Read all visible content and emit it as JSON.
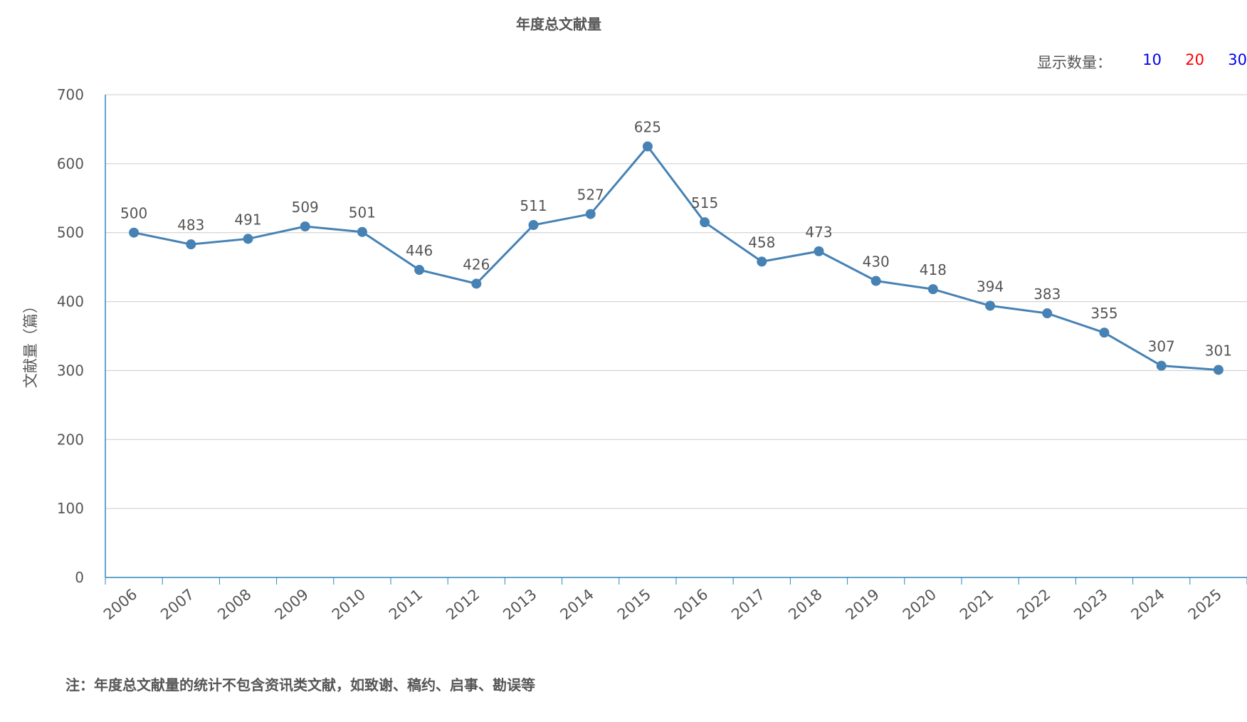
{
  "header": {
    "title": "年度总文献量"
  },
  "count_switch": {
    "label": "显示数量：",
    "options": [
      {
        "label": "10",
        "color": "#0000ee"
      },
      {
        "label": "20",
        "color": "#ff0000"
      },
      {
        "label": "30",
        "color": "#0000ee"
      }
    ]
  },
  "footnote": "注：年度总文献量的统计不包含资讯类文献，如致谢、稿约、启事、勘误等",
  "colors": {
    "line": "#4682b4",
    "axis": "#2e86c1",
    "grid": "#cccccc",
    "text": "#555555"
  },
  "chart_data": {
    "type": "line",
    "title": "年度总文献量",
    "xlabel": "",
    "ylabel": "文献量（篇）",
    "ylim": [
      0,
      700
    ],
    "yticks": [
      0,
      100,
      200,
      300,
      400,
      500,
      600,
      700
    ],
    "grid": true,
    "categories": [
      "2006",
      "2007",
      "2008",
      "2009",
      "2010",
      "2011",
      "2012",
      "2013",
      "2014",
      "2015",
      "2016",
      "2017",
      "2018",
      "2019",
      "2020",
      "2021",
      "2022",
      "2023",
      "2024",
      "2025"
    ],
    "series": [
      {
        "values": [
          500,
          483,
          491,
          509,
          501,
          446,
          426,
          511,
          527,
          625,
          515,
          458,
          473,
          430,
          418,
          394,
          383,
          355,
          307,
          301
        ]
      }
    ]
  }
}
